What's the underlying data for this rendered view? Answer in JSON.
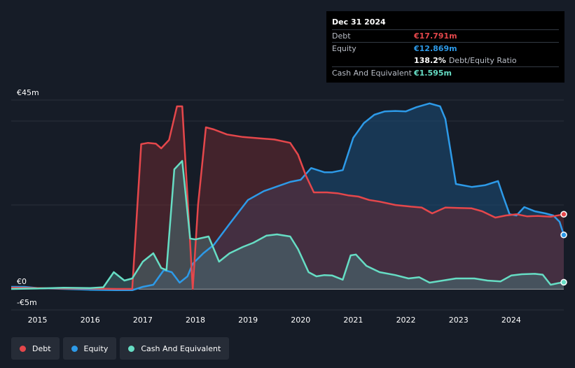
{
  "chart_data": {
    "type": "area",
    "y_unit": "€m",
    "ylim": [
      -5,
      45
    ],
    "xlim": [
      2014.5,
      2025.0
    ],
    "y_tick_labels": [
      "€45m",
      "€0",
      "-€5m"
    ],
    "x_tick_labels": [
      "2015",
      "2016",
      "2017",
      "2018",
      "2019",
      "2020",
      "2021",
      "2022",
      "2023",
      "2024"
    ],
    "legend_position": "bottom-left",
    "series": [
      {
        "name": "Debt",
        "color": "#e5474b",
        "points": [
          [
            2014.5,
            0.3
          ],
          [
            2015.0,
            0.2
          ],
          [
            2015.5,
            0.1
          ],
          [
            2016.0,
            0.1
          ],
          [
            2016.5,
            0.0
          ],
          [
            2016.8,
            0.0
          ],
          [
            2016.97,
            34.5
          ],
          [
            2017.1,
            34.8
          ],
          [
            2017.25,
            34.6
          ],
          [
            2017.35,
            33.5
          ],
          [
            2017.5,
            35.5
          ],
          [
            2017.65,
            43.5
          ],
          [
            2017.75,
            43.5
          ],
          [
            2017.85,
            22.0
          ],
          [
            2017.95,
            0.0
          ],
          [
            2018.05,
            20.0
          ],
          [
            2018.2,
            38.5
          ],
          [
            2018.35,
            38.0
          ],
          [
            2018.6,
            36.8
          ],
          [
            2018.9,
            36.2
          ],
          [
            2019.2,
            35.9
          ],
          [
            2019.5,
            35.6
          ],
          [
            2019.8,
            34.8
          ],
          [
            2019.95,
            32.0
          ],
          [
            2020.1,
            27.0
          ],
          [
            2020.25,
            23.0
          ],
          [
            2020.5,
            23.0
          ],
          [
            2020.7,
            22.8
          ],
          [
            2020.9,
            22.3
          ],
          [
            2021.1,
            22.0
          ],
          [
            2021.3,
            21.2
          ],
          [
            2021.5,
            20.8
          ],
          [
            2021.8,
            20.0
          ],
          [
            2022.1,
            19.6
          ],
          [
            2022.3,
            19.4
          ],
          [
            2022.5,
            18.0
          ],
          [
            2022.75,
            19.4
          ],
          [
            2023.0,
            19.3
          ],
          [
            2023.25,
            19.2
          ],
          [
            2023.45,
            18.5
          ],
          [
            2023.7,
            17.0
          ],
          [
            2023.9,
            17.5
          ],
          [
            2024.1,
            17.8
          ],
          [
            2024.3,
            17.3
          ],
          [
            2024.5,
            17.4
          ],
          [
            2024.75,
            17.2
          ],
          [
            2025.0,
            17.791
          ]
        ]
      },
      {
        "name": "Equity",
        "color": "#2d9ae8",
        "points": [
          [
            2014.5,
            0.5
          ],
          [
            2014.75,
            0.5
          ],
          [
            2015.0,
            0.2
          ],
          [
            2015.5,
            0.0
          ],
          [
            2016.0,
            -0.2
          ],
          [
            2016.5,
            -0.3
          ],
          [
            2016.8,
            -0.3
          ],
          [
            2017.0,
            0.5
          ],
          [
            2017.2,
            1.0
          ],
          [
            2017.4,
            4.5
          ],
          [
            2017.55,
            4.0
          ],
          [
            2017.7,
            1.5
          ],
          [
            2017.85,
            3.0
          ],
          [
            2017.95,
            6.0
          ],
          [
            2018.15,
            8.5
          ],
          [
            2018.35,
            10.5
          ],
          [
            2018.65,
            15.5
          ],
          [
            2019.0,
            21.2
          ],
          [
            2019.3,
            23.3
          ],
          [
            2019.55,
            24.4
          ],
          [
            2019.8,
            25.5
          ],
          [
            2020.0,
            26.0
          ],
          [
            2020.2,
            28.8
          ],
          [
            2020.45,
            27.8
          ],
          [
            2020.6,
            27.8
          ],
          [
            2020.8,
            28.3
          ],
          [
            2021.0,
            36.0
          ],
          [
            2021.2,
            39.5
          ],
          [
            2021.4,
            41.5
          ],
          [
            2021.6,
            42.3
          ],
          [
            2021.8,
            42.4
          ],
          [
            2022.0,
            42.3
          ],
          [
            2022.2,
            43.3
          ],
          [
            2022.45,
            44.2
          ],
          [
            2022.65,
            43.5
          ],
          [
            2022.75,
            40.5
          ],
          [
            2022.95,
            25.0
          ],
          [
            2023.25,
            24.3
          ],
          [
            2023.5,
            24.7
          ],
          [
            2023.75,
            25.7
          ],
          [
            2023.85,
            22.0
          ],
          [
            2023.97,
            17.8
          ],
          [
            2024.1,
            17.5
          ],
          [
            2024.25,
            19.5
          ],
          [
            2024.45,
            18.5
          ],
          [
            2024.65,
            18.0
          ],
          [
            2024.8,
            17.5
          ],
          [
            2024.92,
            16.0
          ],
          [
            2025.0,
            12.869
          ]
        ]
      },
      {
        "name": "Cash And Equivalent",
        "color": "#66ddc4",
        "points": [
          [
            2014.5,
            0.0
          ],
          [
            2015.0,
            0.1
          ],
          [
            2015.5,
            0.3
          ],
          [
            2016.0,
            0.2
          ],
          [
            2016.25,
            0.4
          ],
          [
            2016.45,
            4.0
          ],
          [
            2016.65,
            2.0
          ],
          [
            2016.8,
            2.5
          ],
          [
            2017.0,
            6.5
          ],
          [
            2017.2,
            8.5
          ],
          [
            2017.35,
            5.0
          ],
          [
            2017.45,
            4.5
          ],
          [
            2017.6,
            28.5
          ],
          [
            2017.75,
            30.5
          ],
          [
            2017.9,
            12.0
          ],
          [
            2018.0,
            11.8
          ],
          [
            2018.25,
            12.5
          ],
          [
            2018.45,
            6.5
          ],
          [
            2018.65,
            8.5
          ],
          [
            2018.9,
            10.0
          ],
          [
            2019.1,
            11.0
          ],
          [
            2019.35,
            12.7
          ],
          [
            2019.55,
            13.0
          ],
          [
            2019.8,
            12.5
          ],
          [
            2019.95,
            9.5
          ],
          [
            2020.15,
            4.0
          ],
          [
            2020.3,
            3.0
          ],
          [
            2020.45,
            3.3
          ],
          [
            2020.6,
            3.2
          ],
          [
            2020.8,
            2.2
          ],
          [
            2020.95,
            8.0
          ],
          [
            2021.05,
            8.2
          ],
          [
            2021.25,
            5.5
          ],
          [
            2021.5,
            4.0
          ],
          [
            2021.8,
            3.3
          ],
          [
            2022.05,
            2.5
          ],
          [
            2022.25,
            2.8
          ],
          [
            2022.45,
            1.5
          ],
          [
            2022.7,
            2.0
          ],
          [
            2022.95,
            2.5
          ],
          [
            2023.3,
            2.5
          ],
          [
            2023.55,
            2.0
          ],
          [
            2023.8,
            1.8
          ],
          [
            2024.0,
            3.2
          ],
          [
            2024.2,
            3.5
          ],
          [
            2024.45,
            3.6
          ],
          [
            2024.6,
            3.4
          ],
          [
            2024.75,
            1.0
          ],
          [
            2024.9,
            1.4
          ],
          [
            2025.0,
            1.595
          ]
        ]
      }
    ]
  },
  "tooltip": {
    "date": "Dec 31 2024",
    "debt_label": "Debt",
    "debt_value": "€17.791m",
    "equity_label": "Equity",
    "equity_value": "€12.869m",
    "ratio_value": "138.2%",
    "ratio_text": "Debt/Equity Ratio",
    "cash_label": "Cash And Equivalent",
    "cash_value": "€1.595m"
  },
  "legend": {
    "debt": "Debt",
    "equity": "Equity",
    "cash": "Cash And Equivalent"
  },
  "colors": {
    "debt": "#e5474b",
    "equity": "#2d9ae8",
    "cash": "#66ddc4",
    "background": "#161c27"
  }
}
